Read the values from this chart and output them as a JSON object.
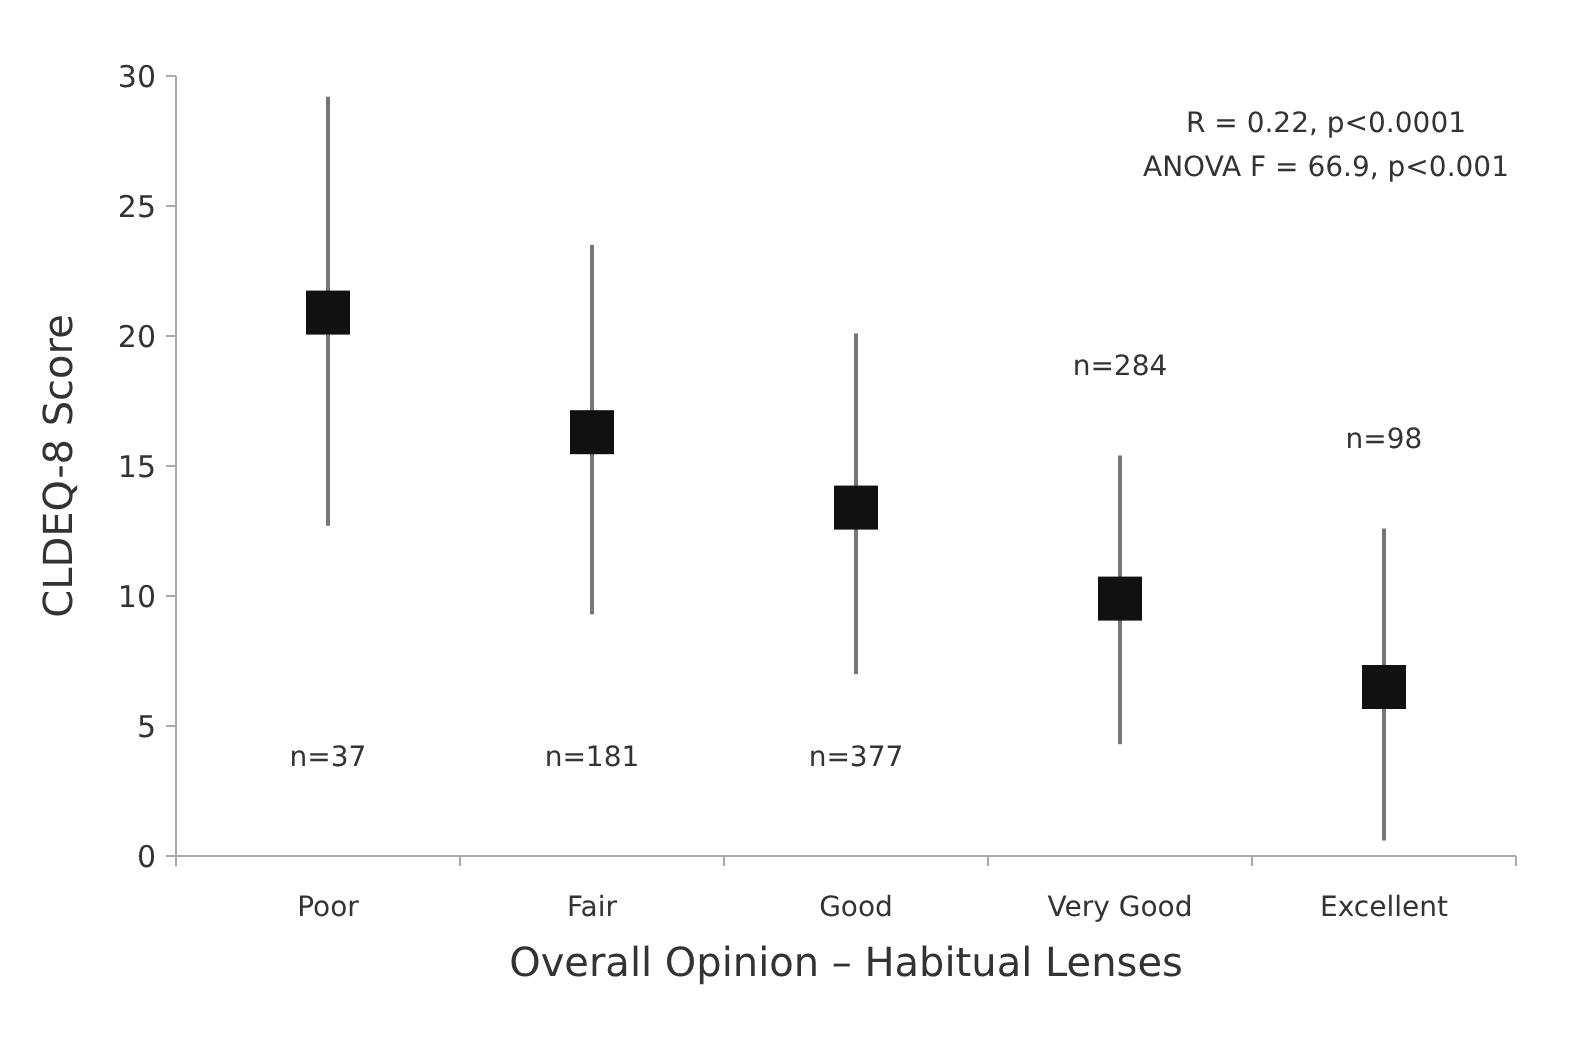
{
  "chart_data": {
    "type": "scatter",
    "xlabel": "Overall Opinion – Habitual Lenses",
    "ylabel": "CLDEQ-8 Score",
    "categories": [
      "Poor",
      "Fair",
      "Good",
      "Very Good",
      "Excellent"
    ],
    "values": [
      20.9,
      16.3,
      13.4,
      9.9,
      6.5
    ],
    "errors": [
      [
        12.7,
        29.2
      ],
      [
        9.3,
        23.5
      ],
      [
        7.0,
        20.1
      ],
      [
        4.3,
        15.4
      ],
      [
        0.6,
        12.6
      ]
    ],
    "color": "#111111",
    "marker": "square",
    "grid": false,
    "ylim": [
      0,
      30
    ],
    "yticks": [
      0,
      5,
      10,
      15,
      20,
      25,
      30
    ],
    "annotations": [
      "n=37",
      "n=181",
      "n=377",
      "n=284",
      "n=98",
      "R = 0.22, p<0.0001\nANOVA F = 66.9, p<0.001"
    ]
  }
}
